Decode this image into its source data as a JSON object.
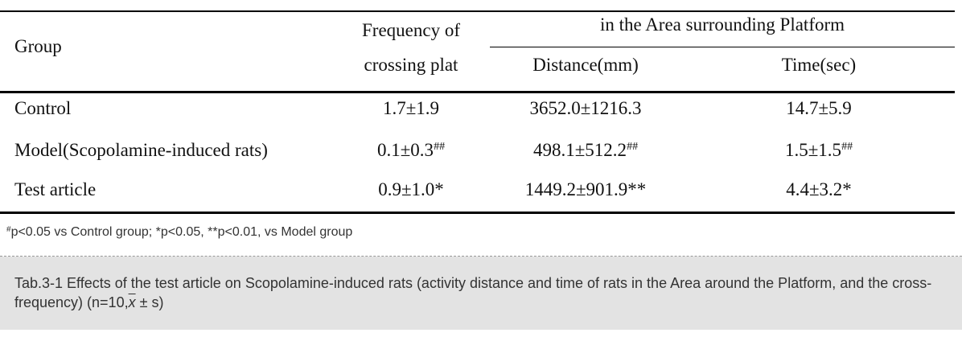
{
  "table": {
    "header": {
      "group": "Group",
      "frequency_line1": "Frequency of",
      "frequency_line2": "crossing plat",
      "area_group": "in the Area surrounding Platform",
      "distance": "Distance(mm)",
      "time": "Time(sec)"
    },
    "rows": [
      {
        "group": "Control",
        "frequency": "1.7±1.9",
        "frequency_mark": "",
        "distance": "3652.0±1216.3",
        "distance_mark": "",
        "time": "14.7±5.9",
        "time_mark": ""
      },
      {
        "group": "Model(Scopolamine-induced rats)",
        "frequency": "0.1±0.3",
        "frequency_mark": "##",
        "distance": "498.1±512.2",
        "distance_mark": "##",
        "time": "1.5±1.5",
        "time_mark": "##"
      },
      {
        "group": "Test article",
        "frequency": "0.9±1.0*",
        "frequency_mark": "",
        "distance": "1449.2±901.9**",
        "distance_mark": "",
        "time": "4.4±3.2*",
        "time_mark": ""
      }
    ]
  },
  "footnote": {
    "mark": "#",
    "text": "p<0.05 vs Control group; *p<0.05, **p<0.01, vs Model group"
  },
  "caption": {
    "text": "Tab.3-1 Effects of the test article on Scopolamine-induced rats (activity distance and time of rats in the Area around the Platform, and the cross-frequency)  (n=10,",
    "xbar": "x",
    "tail": " ± s)"
  }
}
